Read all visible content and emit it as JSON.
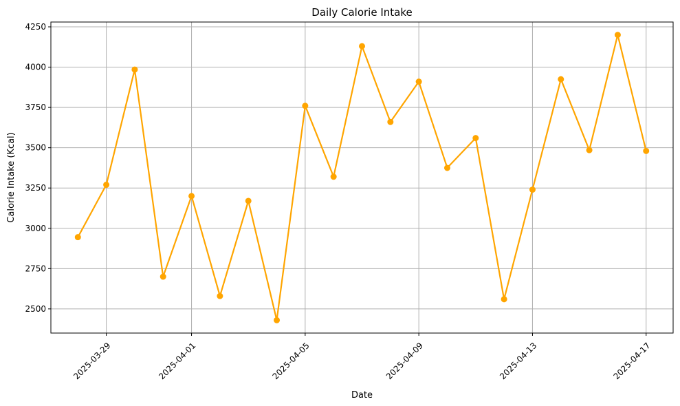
{
  "chart_data": {
    "type": "line",
    "title": "Daily Calorie Intake",
    "xlabel": "Date",
    "ylabel": "Calorie Intake (Kcal)",
    "grid": true,
    "x_tick_labels": [
      "2025-03-29",
      "2025-04-01",
      "2025-04-05",
      "2025-04-09",
      "2025-04-13",
      "2025-04-17"
    ],
    "y_tick_labels": [
      "2500",
      "2750",
      "3000",
      "3250",
      "3500",
      "3750",
      "4000",
      "4250"
    ],
    "ylim": [
      2350,
      4280
    ],
    "xlim": [
      "2025-03-27",
      "2025-04-18"
    ],
    "series": [
      {
        "color": "#FFA500",
        "x": [
          "2025-03-28",
          "2025-03-29",
          "2025-03-30",
          "2025-03-31",
          "2025-04-01",
          "2025-04-02",
          "2025-04-03",
          "2025-04-04",
          "2025-04-05",
          "2025-04-06",
          "2025-04-07",
          "2025-04-08",
          "2025-04-09",
          "2025-04-10",
          "2025-04-11",
          "2025-04-12",
          "2025-04-13",
          "2025-04-14",
          "2025-04-15",
          "2025-04-16",
          "2025-04-17"
        ],
        "values": [
          2945,
          3270,
          3985,
          2700,
          3200,
          2580,
          3170,
          2430,
          3760,
          3320,
          4130,
          3660,
          3910,
          3375,
          3560,
          2560,
          3240,
          3925,
          3485,
          4200,
          3480
        ]
      }
    ]
  }
}
